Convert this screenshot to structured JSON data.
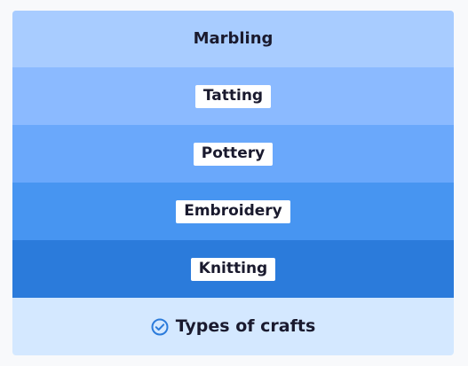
{
  "diagram": {
    "title": "Marbling",
    "caption": "Types of crafts",
    "caption_icon": "check-circle-icon",
    "layers": [
      {
        "label": "Marbling",
        "color": "#a8ccff",
        "pill": false
      },
      {
        "label": "Tatting",
        "color": "#8bbaff",
        "pill": true
      },
      {
        "label": "Pottery",
        "color": "#6aa8fb",
        "pill": true
      },
      {
        "label": "Embroidery",
        "color": "#4795f1",
        "pill": true
      },
      {
        "label": "Knitting",
        "color": "#2b7bdb",
        "pill": true
      }
    ],
    "footer_color": "#d4e8ff",
    "icon_color": "#2b7bdb"
  }
}
